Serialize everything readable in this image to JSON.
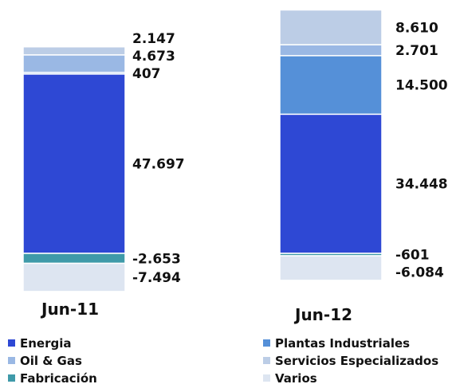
{
  "chart_data": {
    "type": "bar",
    "stacked": true,
    "categories": [
      "Jun-11",
      "Jun-12"
    ],
    "series": [
      {
        "name": "Energia",
        "color": "#2e48d4",
        "values": [
          47697,
          34448
        ],
        "labels": [
          "47.697",
          "34.448"
        ]
      },
      {
        "name": "Plantas Industriales",
        "color": "#5590d8",
        "values": [
          407,
          14500
        ],
        "labels": [
          "407",
          "14.500"
        ]
      },
      {
        "name": "Oil & Gas",
        "color": "#9ab8e4",
        "values": [
          4673,
          2701
        ],
        "labels": [
          "4.673",
          "2.701"
        ]
      },
      {
        "name": "Servicios Especializados",
        "color": "#bccde6",
        "values": [
          2147,
          8610
        ],
        "labels": [
          "2.147",
          "8.610"
        ]
      },
      {
        "name": "Fabricación",
        "color": "#3f9aa9",
        "values": [
          -2653,
          -601
        ],
        "labels": [
          "-2.653",
          "-601"
        ]
      },
      {
        "name": "Varios",
        "color": "#dde5f1",
        "values": [
          -7494,
          -6084
        ],
        "labels": [
          "-7.494",
          "-6.084"
        ]
      }
    ],
    "legend_position": "bottom",
    "grid": false,
    "axes_visible": false
  }
}
